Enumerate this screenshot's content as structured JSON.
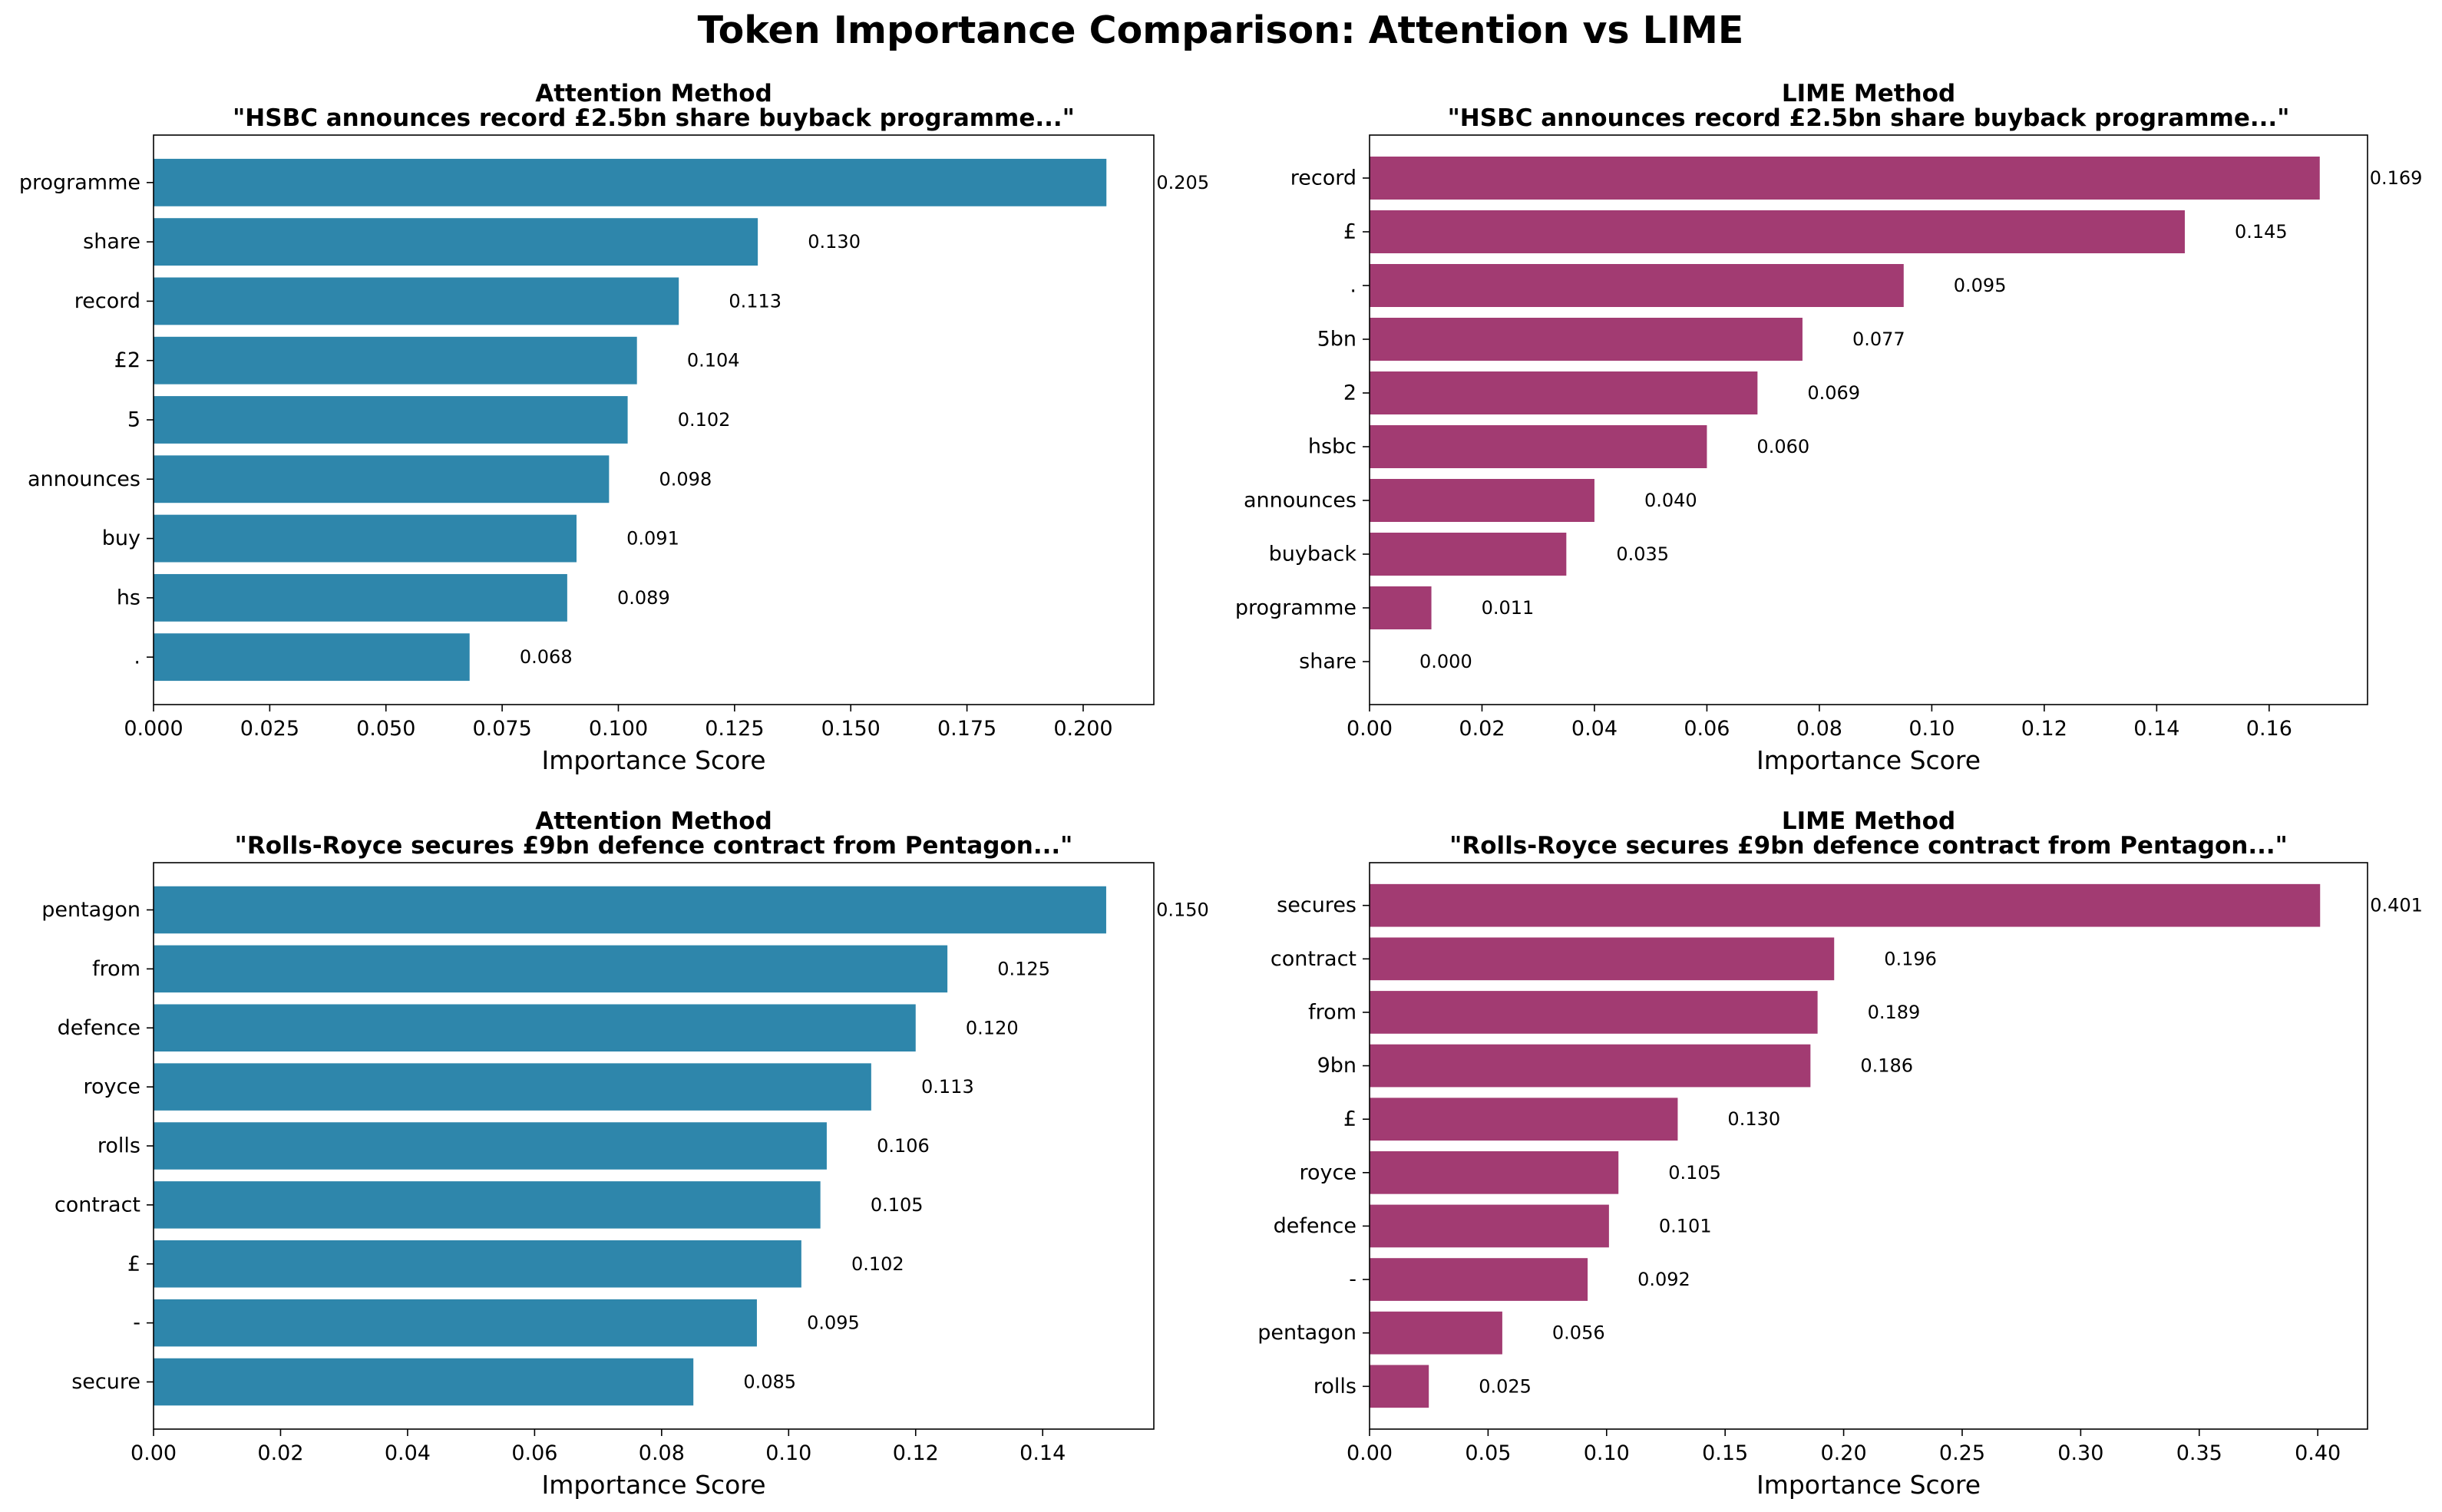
{
  "figure": {
    "title": "Token Importance Comparison: Attention vs LIME"
  },
  "chart_data": [
    {
      "type": "bar",
      "orientation": "horizontal",
      "title": "Attention Method",
      "subtitle": "\"HSBC announces record £2.5bn share buyback programme...\"",
      "xlabel": "Importance Score",
      "ylabel": "",
      "color": "#2e86ab",
      "xlim": [
        0,
        0.2152
      ],
      "xticks": [
        "0.000",
        "0.025",
        "0.050",
        "0.075",
        "0.100",
        "0.125",
        "0.150",
        "0.175",
        "0.200"
      ],
      "xtick_values": [
        0,
        0.025,
        0.05,
        0.075,
        0.1,
        0.125,
        0.15,
        0.175,
        0.2
      ],
      "categories": [
        "programme",
        "share",
        "record",
        "£2",
        "5",
        "announces",
        "buy",
        "hs",
        "."
      ],
      "values": [
        0.205,
        0.13,
        0.113,
        0.104,
        0.102,
        0.098,
        0.091,
        0.089,
        0.068
      ],
      "labels": [
        "0.205",
        "0.130",
        "0.113",
        "0.104",
        "0.102",
        "0.098",
        "0.091",
        "0.089",
        "0.068"
      ]
    },
    {
      "type": "bar",
      "orientation": "horizontal",
      "title": "LIME Method",
      "subtitle": "\"HSBC announces record £2.5bn share buyback programme...\"",
      "xlabel": "Importance Score",
      "ylabel": "",
      "color": "#a23b72",
      "xlim": [
        0,
        0.1775
      ],
      "xticks": [
        "0.00",
        "0.02",
        "0.04",
        "0.06",
        "0.08",
        "0.10",
        "0.12",
        "0.14",
        "0.16"
      ],
      "xtick_values": [
        0,
        0.02,
        0.04,
        0.06,
        0.08,
        0.1,
        0.12,
        0.14,
        0.16
      ],
      "categories": [
        "record",
        "£",
        ".",
        "5bn",
        "2",
        "hsbc",
        "announces",
        "buyback",
        "programme",
        "share"
      ],
      "values": [
        0.169,
        0.145,
        0.095,
        0.077,
        0.069,
        0.06,
        0.04,
        0.035,
        0.011,
        0.0
      ],
      "labels": [
        "0.169",
        "0.145",
        "0.095",
        "0.077",
        "0.069",
        "0.060",
        "0.040",
        "0.035",
        "0.011",
        "0.000"
      ]
    },
    {
      "type": "bar",
      "orientation": "horizontal",
      "title": "Attention Method",
      "subtitle": "\"Rolls-Royce secures £9bn defence contract from Pentagon...\"",
      "xlabel": "Importance Score",
      "ylabel": "",
      "color": "#2e86ab",
      "xlim": [
        0,
        0.1575
      ],
      "xticks": [
        "0.00",
        "0.02",
        "0.04",
        "0.06",
        "0.08",
        "0.10",
        "0.12",
        "0.14"
      ],
      "xtick_values": [
        0,
        0.02,
        0.04,
        0.06,
        0.08,
        0.1,
        0.12,
        0.14
      ],
      "categories": [
        "pentagon",
        "from",
        "defence",
        "royce",
        "rolls",
        "contract",
        "£",
        "-",
        "secure"
      ],
      "values": [
        0.15,
        0.125,
        0.12,
        0.113,
        0.106,
        0.105,
        0.102,
        0.095,
        0.085
      ],
      "labels": [
        "0.150",
        "0.125",
        "0.120",
        "0.113",
        "0.106",
        "0.105",
        "0.102",
        "0.095",
        "0.085"
      ]
    },
    {
      "type": "bar",
      "orientation": "horizontal",
      "title": "LIME Method",
      "subtitle": "\"Rolls-Royce secures £9bn defence contract from Pentagon...\"",
      "xlabel": "Importance Score",
      "ylabel": "",
      "color": "#a23b72",
      "xlim": [
        0,
        0.421
      ],
      "xticks": [
        "0.00",
        "0.05",
        "0.10",
        "0.15",
        "0.20",
        "0.25",
        "0.30",
        "0.35",
        "0.40"
      ],
      "xtick_values": [
        0,
        0.05,
        0.1,
        0.15,
        0.2,
        0.25,
        0.3,
        0.35,
        0.4
      ],
      "categories": [
        "secures",
        "contract",
        "from",
        "9bn",
        "£",
        "royce",
        "defence",
        "-",
        "pentagon",
        "rolls"
      ],
      "values": [
        0.401,
        0.196,
        0.189,
        0.186,
        0.13,
        0.105,
        0.101,
        0.092,
        0.056,
        0.025
      ],
      "labels": [
        "0.401",
        "0.196",
        "0.189",
        "0.186",
        "0.130",
        "0.105",
        "0.101",
        "0.092",
        "0.056",
        "0.025"
      ]
    }
  ]
}
